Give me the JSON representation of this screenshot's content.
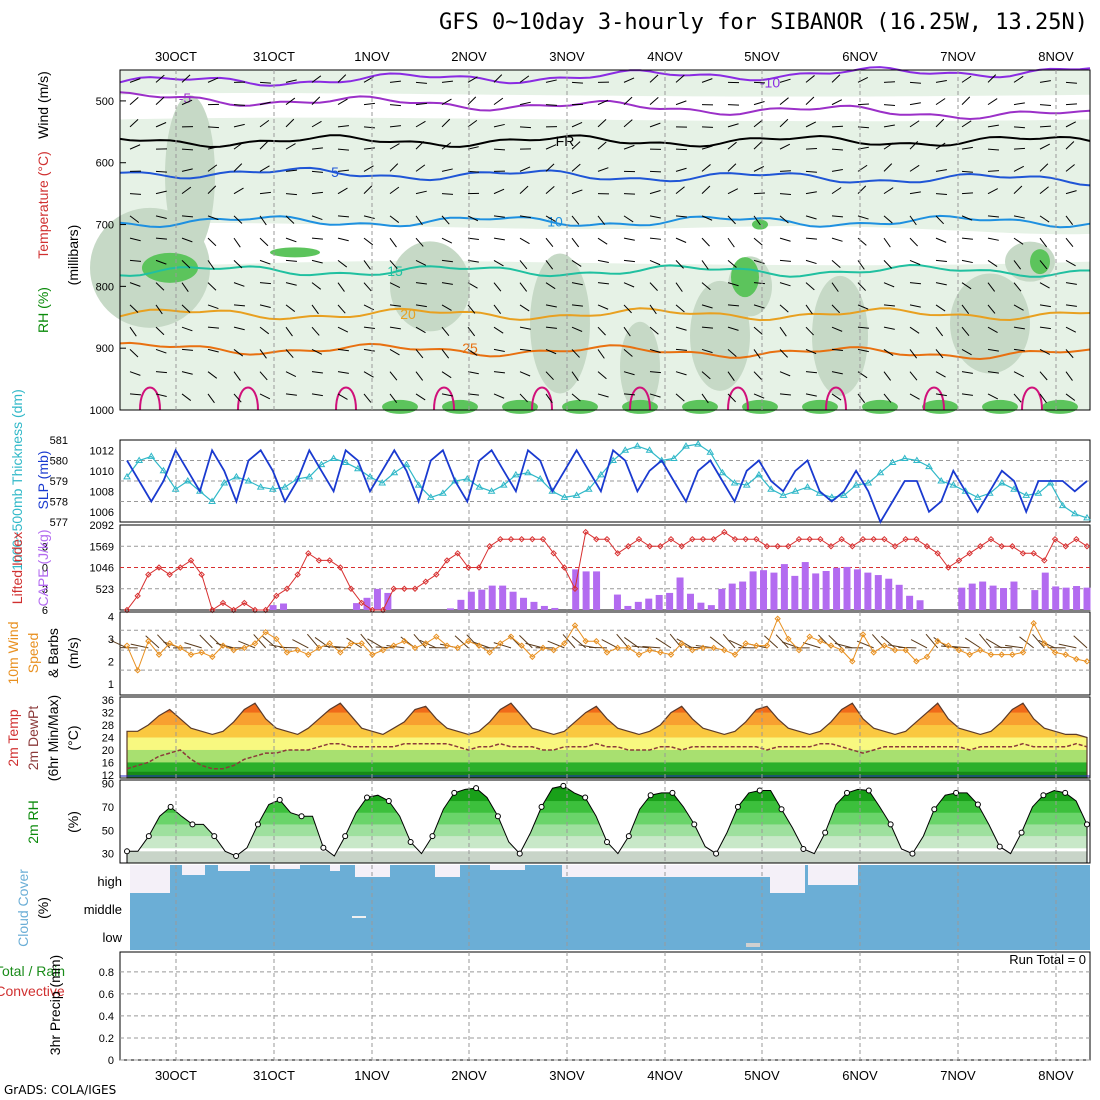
{
  "title": "GFS 0~10day 3-hourly for SIBANOR (16.25W, 13.25N)",
  "footer": "GrADS: COLA/IGES",
  "date_labels": [
    "30OCT",
    "31OCT",
    "1NOV",
    "2NOV",
    "3NOV",
    "4NOV",
    "5NOV",
    "6NOV",
    "7NOV",
    "8NOV"
  ],
  "colors": {
    "rh_light": "#e6f2e6",
    "rh_mid": "#c6d9c6",
    "rh_dark": "#a8bfa8",
    "rh_green": "#5cc45c",
    "temp_neg10": "#8a2be2",
    "temp_neg5": "#9b30c8",
    "temp_0": "#000000",
    "temp_5": "#1f55d6",
    "temp_10": "#1e90e0",
    "temp_15": "#20c0a0",
    "temp_20": "#e8a020",
    "temp_25": "#e87010",
    "temp_30": "#d0107a",
    "slp": "#1a3ad0",
    "thickness": "#30b8c8",
    "lifted": "#d83030",
    "cape": "#b36bf0",
    "wind10m": "#e89020",
    "dewpt": "#8b3a3a",
    "cloud": "#6baed6",
    "rain": "#1a8c1a"
  },
  "panel_titles": {
    "upper": {
      "rh": "RH (%)",
      "temperature": "Temperature (°C)",
      "wind": "Wind (m/s)",
      "units": "(millibars)"
    },
    "slp": {
      "thickness": "1000~500mb Thickness (dm)",
      "slp": "SLP (mb)"
    },
    "cape": {
      "lifted": "Lifted Index",
      "cape": "CAPE (J/kg)"
    },
    "wind10m": {
      "line1": "10m Wind",
      "line2": "Speed",
      "line3": "& Barbs",
      "units": "(m/s)"
    },
    "temp2m": {
      "line1": "2m Temp",
      "line2": "2m DewPt",
      "line3": "(6hr Min/Max)",
      "units": "(°C)"
    },
    "rh2m": {
      "line1": "2m RH",
      "units": "(%)"
    },
    "cloud": {
      "line1": "Cloud Cover",
      "units": "(%)"
    },
    "precip": {
      "line1": "Total / Rain",
      "line2": "Convective",
      "units": "3hr Precip (mm)"
    }
  },
  "chart_data": [
    {
      "type": "heatmap",
      "name": "upper-air",
      "y_ticks": [
        500,
        600,
        700,
        800,
        900,
        1000
      ],
      "contour_labels": [
        {
          "label": "-10",
          "level": 470
        },
        {
          "label": "-5",
          "level": 495
        },
        {
          "label": "FR",
          "level": 565
        },
        {
          "label": "5",
          "level": 615
        },
        {
          "label": "10",
          "level": 695
        },
        {
          "label": "15",
          "level": 780
        },
        {
          "label": "20",
          "level": 845
        },
        {
          "label": "25",
          "level": 900
        }
      ],
      "rh_labels": [
        "10",
        "30",
        "50"
      ]
    },
    {
      "type": "line",
      "name": "slp-thickness",
      "y_ticks_left": [
        577,
        578,
        579,
        580,
        581
      ],
      "y_ticks_right": [
        1006,
        1008,
        1010,
        1012
      ],
      "slp": [
        1011,
        1009,
        1007,
        1009,
        1012,
        1010,
        1008,
        1012,
        1010,
        1007,
        1011,
        1012,
        1010,
        1007,
        1009,
        1012,
        1010,
        1008,
        1012,
        1011,
        1008,
        1010,
        1012,
        1010,
        1007,
        1011,
        1012,
        1009,
        1007,
        1011,
        1012,
        1010,
        1008,
        1012,
        1011,
        1008,
        1010,
        1012,
        1010,
        1008,
        1012,
        1011,
        1008,
        1010,
        1011,
        1009,
        1007,
        1010,
        1011,
        1009,
        1007,
        1010,
        1011,
        1009,
        1008,
        1010,
        1011,
        1008,
        1007,
        1008,
        1010,
        1008,
        1005,
        1007,
        1009,
        1009,
        1006,
        1007,
        1010,
        1008,
        1006,
        1008,
        1010,
        1009,
        1006,
        1009,
        1009,
        1009,
        1008,
        1009
      ],
      "thickness": [
        579.2,
        580,
        580.2,
        579.5,
        578.6,
        579,
        578.5,
        578,
        578.9,
        579.2,
        579,
        578.7,
        578.6,
        578.7,
        579.1,
        579.2,
        579.8,
        580.1,
        579.9,
        579.6,
        579.2,
        578.9,
        579.4,
        579.8,
        578.8,
        578.2,
        578.4,
        579,
        579.1,
        578.7,
        578.5,
        578.8,
        579.3,
        579.4,
        579.1,
        578.5,
        578.2,
        578.3,
        578.6,
        579.3,
        580,
        580.5,
        580.7,
        580.5,
        580,
        580.1,
        580.7,
        580.8,
        580.4,
        579.4,
        578.9,
        578.8,
        579.3,
        578.6,
        578.3,
        578.5,
        578.7,
        578.4,
        578.2,
        578.3,
        578.8,
        578.9,
        579.4,
        579.9,
        580.1,
        580,
        579.7,
        579,
        578.8,
        578.5,
        578.2,
        578.4,
        578.9,
        578.6,
        578.3,
        578.4,
        578.9,
        577.8,
        577.4,
        577.2
      ]
    },
    {
      "type": "bar",
      "name": "cape-lifted",
      "y_ticks_left": [
        -3,
        0,
        3,
        6
      ],
      "y_ticks_right": [
        523,
        1046,
        1569,
        2092
      ],
      "cape": [
        0,
        0,
        0,
        0,
        0,
        0,
        0,
        0,
        0,
        0,
        0,
        0,
        0,
        0,
        120,
        160,
        0,
        0,
        0,
        0,
        0,
        0,
        170,
        300,
        520,
        420,
        0,
        0,
        0,
        0,
        0,
        40,
        250,
        450,
        500,
        600,
        600,
        450,
        300,
        200,
        100,
        50,
        0,
        1000,
        950,
        950,
        0,
        380,
        100,
        200,
        280,
        370,
        420,
        800,
        400,
        180,
        120,
        520,
        650,
        700,
        950,
        980,
        920,
        1130,
        840,
        1180,
        900,
        960,
        1040,
        1060,
        1000,
        920,
        860,
        770,
        620,
        350,
        240,
        0,
        0,
        0,
        550,
        650,
        700,
        600,
        540,
        700,
        0,
        490,
        920,
        580,
        550,
        590,
        550
      ],
      "lifted": [
        6,
        4,
        1,
        0,
        1,
        0,
        -1,
        1,
        6,
        5,
        6,
        5,
        6,
        6,
        4,
        3,
        1,
        -2,
        -1,
        -1,
        0,
        3,
        5,
        6,
        6,
        3,
        3,
        3,
        2,
        1,
        -1,
        -2,
        0,
        0,
        -3,
        -4,
        -4,
        -4,
        -4,
        -4,
        -2,
        0,
        3,
        -5,
        -4,
        -4,
        -2,
        -3,
        -4,
        -3,
        -3,
        -4,
        -3,
        -4,
        -4,
        -4,
        -5,
        -4,
        -4,
        -4,
        -3,
        -3,
        -3,
        -4,
        -4,
        -4,
        -3,
        -4,
        -3,
        -4,
        -4,
        -4,
        -3,
        -4,
        -4,
        -3,
        -2,
        0,
        -1,
        -2,
        -3,
        -4,
        -3,
        -3,
        -2,
        -2,
        -1,
        -4,
        -3,
        -4,
        -3
      ]
    },
    {
      "type": "line",
      "name": "wind10m",
      "y_ticks": [
        1,
        2,
        3,
        4
      ],
      "speed": [
        2.7,
        1.6,
        2.9,
        2.3,
        2.8,
        2.6,
        2.3,
        2.4,
        2.2,
        2.7,
        2.5,
        2.6,
        2.8,
        3.3,
        3.0,
        2.4,
        2.5,
        2.3,
        2.6,
        2.8,
        2.4,
        2.8,
        2.8,
        2.3,
        2.5,
        2.7,
        2.9,
        2.6,
        2.8,
        3.1,
        2.7,
        2.6,
        2.9,
        2.7,
        2.4,
        2.8,
        3.1,
        2.7,
        2.2,
        2.6,
        2.5,
        2.8,
        3.6,
        2.9,
        2.9,
        2.4,
        2.6,
        2.6,
        2.3,
        2.5,
        2.4,
        2.3,
        2.8,
        2.5,
        2.6,
        2.6,
        2.5,
        2.3,
        2.8,
        2.7,
        2.7,
        3.9,
        3.0,
        2.5,
        3.1,
        2.9,
        2.7,
        2.5,
        2.0,
        3.2,
        2.4,
        2.7,
        2.5,
        2.5,
        2.0,
        2.2,
        2.9,
        2.7,
        2.5,
        2.3,
        2.5,
        2.3,
        2.3,
        2.3,
        2.4,
        3.7,
        2.8,
        2.4,
        2.3,
        2.1,
        2.0
      ]
    },
    {
      "type": "area",
      "name": "temp-dewpt",
      "y_ticks": [
        12,
        16,
        20,
        24,
        28,
        32,
        36
      ],
      "temp": [
        26,
        26,
        28,
        31,
        33,
        30,
        27,
        26,
        25,
        26,
        29,
        33,
        35,
        30,
        27,
        26,
        25,
        27,
        30,
        33,
        35,
        31,
        27,
        26,
        25,
        27,
        29,
        33,
        34,
        30,
        27,
        26,
        25,
        26,
        29,
        33,
        35,
        31,
        27,
        26,
        25,
        26,
        29,
        32,
        34,
        30,
        27,
        26,
        25,
        26,
        28,
        32,
        34,
        30,
        27,
        26,
        25,
        26,
        29,
        33,
        34,
        30,
        27,
        26,
        25,
        26,
        29,
        33,
        35,
        30,
        27,
        26,
        25,
        26,
        29,
        32,
        35,
        30,
        27,
        26,
        25,
        26,
        29,
        33,
        35,
        30,
        27,
        26,
        25,
        25,
        24
      ],
      "dewpt": [
        14,
        15,
        16,
        18,
        19,
        20,
        17,
        15,
        14,
        14,
        15,
        17,
        18,
        19,
        19,
        20,
        20,
        20,
        21,
        22,
        22,
        21,
        21,
        21,
        21,
        21,
        22,
        22,
        22,
        22,
        22,
        21,
        20,
        21,
        21,
        22,
        21,
        21,
        21,
        20,
        20,
        21,
        21,
        21,
        22,
        21,
        21,
        20,
        20,
        20,
        21,
        21,
        20,
        21,
        21,
        21,
        21,
        21,
        21,
        21,
        20,
        21,
        21,
        21,
        21,
        22,
        22,
        21,
        20,
        19,
        20,
        21,
        21,
        21,
        21,
        21,
        21,
        21,
        21,
        20,
        21,
        21,
        21,
        21,
        22,
        21,
        21,
        21,
        21,
        22,
        21
      ]
    },
    {
      "type": "area",
      "name": "rh2m",
      "y_ticks": [
        30,
        50,
        70,
        90
      ],
      "rh": [
        32,
        32,
        45,
        62,
        70,
        62,
        55,
        55,
        45,
        32,
        28,
        35,
        55,
        72,
        76,
        65,
        62,
        62,
        35,
        28,
        45,
        65,
        78,
        80,
        75,
        62,
        40,
        30,
        45,
        68,
        82,
        85,
        86,
        78,
        62,
        40,
        30,
        48,
        70,
        86,
        88,
        82,
        78,
        62,
        40,
        30,
        45,
        68,
        80,
        82,
        82,
        70,
        55,
        36,
        30,
        48,
        70,
        82,
        84,
        84,
        68,
        52,
        34,
        30,
        48,
        72,
        82,
        85,
        84,
        70,
        55,
        34,
        30,
        45,
        68,
        80,
        82,
        82,
        72,
        55,
        36,
        30,
        48,
        70,
        80,
        84,
        82,
        75,
        55
      ]
    },
    {
      "type": "bar",
      "name": "cloud-cover",
      "y_ticks": [
        "high",
        "middle",
        "low"
      ]
    },
    {
      "type": "bar",
      "name": "precip-3hr",
      "y_ticks": [
        0,
        0.2,
        0.4,
        0.6,
        0.8
      ],
      "run_total": "Run Total = 0",
      "values": []
    }
  ]
}
